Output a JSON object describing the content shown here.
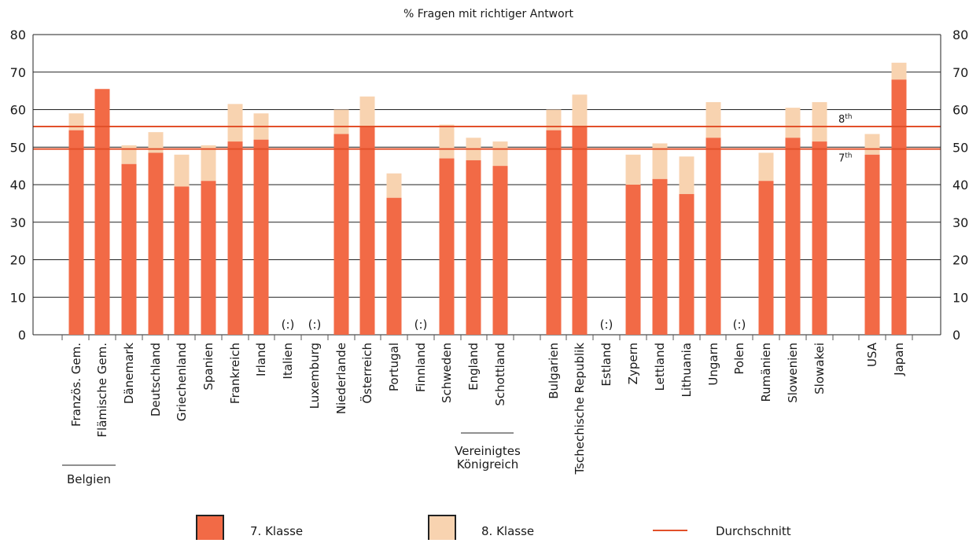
{
  "chart_data": {
    "type": "bar",
    "title": "% Fragen mit richtiger Antwort",
    "ylim": [
      0,
      80
    ],
    "yticks": [
      0,
      10,
      20,
      30,
      40,
      50,
      60,
      70,
      80
    ],
    "grid": true,
    "categories": [
      "Französ. Gem.",
      "Flämische Gem.",
      "Dänemark",
      "Deutschland",
      "Griechenland",
      "Spanien",
      "Frankreich",
      "Irland",
      "Italien",
      "Luxemburg",
      "Niederlande",
      "Österreich",
      "Portugal",
      "Finnland",
      "Schweden",
      "England",
      "Schottland",
      "Bulgarien",
      "Tschechische Republik",
      "Estland",
      "Zypern",
      "Lettland",
      "Lithuania",
      "Ungarn",
      "Polen",
      "Rumänien",
      "Slowenien",
      "Slowakei",
      "USA",
      "Japan"
    ],
    "series": [
      {
        "name": "7. Klasse",
        "color": "#f26a46",
        "values": [
          54.5,
          65.5,
          45.5,
          48.5,
          39.5,
          41,
          51.5,
          52,
          null,
          null,
          53.5,
          55.5,
          36.5,
          null,
          47,
          46.5,
          45,
          54.5,
          55.5,
          null,
          40,
          41.5,
          37.5,
          52.5,
          null,
          41,
          52.5,
          51.5,
          48,
          68
        ]
      },
      {
        "name": "8. Klasse",
        "color": "#f8d3b0",
        "values": [
          59,
          65.5,
          50.5,
          54,
          48,
          50.5,
          61.5,
          59,
          null,
          null,
          60,
          63.5,
          43,
          null,
          56,
          52.5,
          51.5,
          60,
          64,
          null,
          48,
          51,
          47.5,
          62,
          null,
          48.5,
          60.5,
          62,
          53.5,
          72.5
        ]
      }
    ],
    "missing_marker": "(:)",
    "groups": [
      {
        "label": "Belgien",
        "categories": [
          "Französ. Gem.",
          "Flämische Gem."
        ]
      },
      {
        "label": "Vereinigtes Königreich",
        "categories": [
          "England",
          "Schottland"
        ]
      }
    ],
    "reference_lines": [
      {
        "name": "Durchschnitt",
        "label": "8th",
        "value": 55.5,
        "color": "#e2502a"
      },
      {
        "name": "Durchschnitt",
        "label": "7th",
        "value": 49.5,
        "color": "#e2502a"
      }
    ],
    "legend": {
      "placement": "bottom",
      "items": [
        {
          "label": "7. Klasse",
          "kind": "box",
          "color": "#f26a46"
        },
        {
          "label": "8. Klasse",
          "kind": "box",
          "color": "#f8d3b0"
        },
        {
          "label": "Durchschnitt",
          "kind": "line",
          "color": "#e2502a"
        }
      ]
    }
  }
}
